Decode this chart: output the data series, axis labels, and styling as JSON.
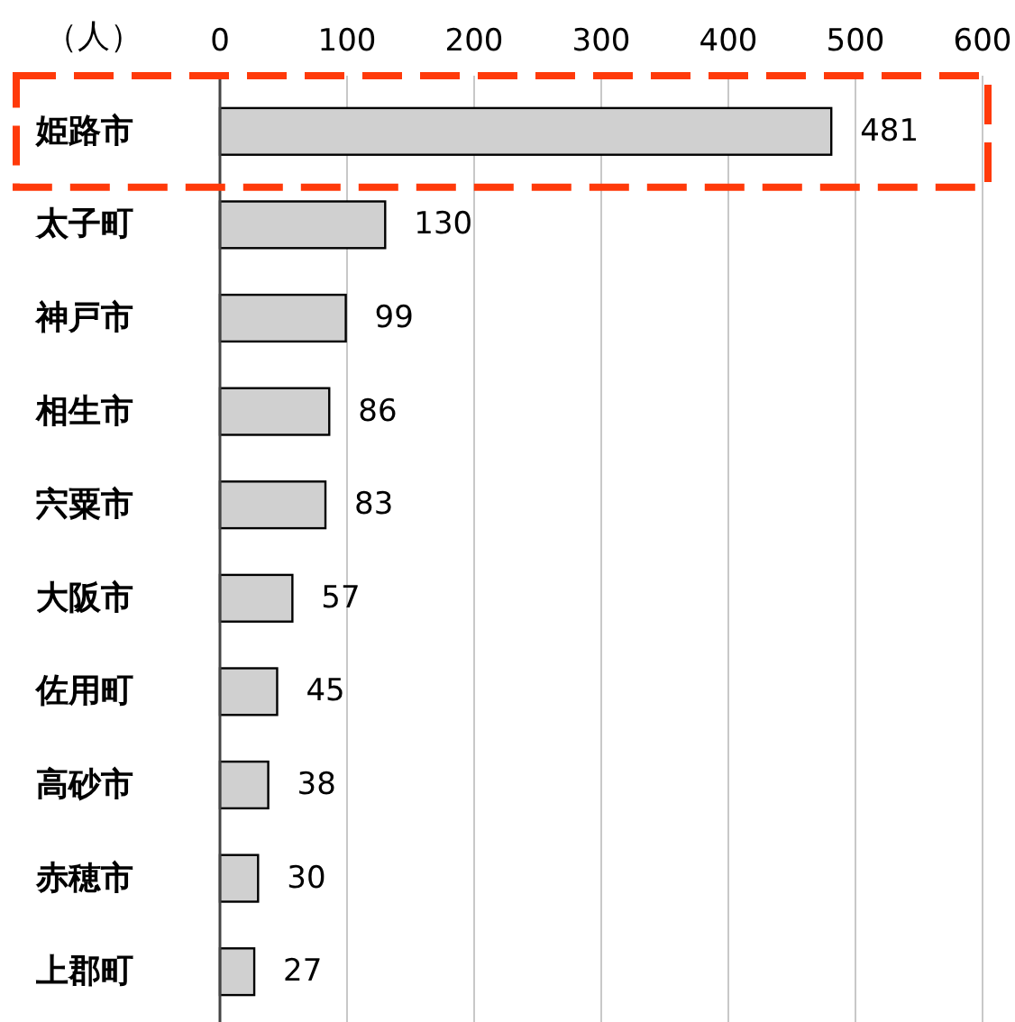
{
  "chart_data": {
    "type": "bar",
    "orientation": "horizontal",
    "xlabel": "（人）",
    "categories": [
      "姫路市",
      "太子町",
      "神戸市",
      "相生市",
      "宍粟市",
      "大阪市",
      "佐用町",
      "高砂市",
      "赤穂市",
      "上郡町"
    ],
    "values": [
      481,
      130,
      99,
      86,
      83,
      57,
      45,
      38,
      30,
      27
    ],
    "color": "#d0d0d0",
    "xlim": [
      0,
      600
    ],
    "xticks": [
      0,
      100,
      200,
      300,
      400,
      500,
      600
    ],
    "grid": "x",
    "data_labels": true
  }
}
